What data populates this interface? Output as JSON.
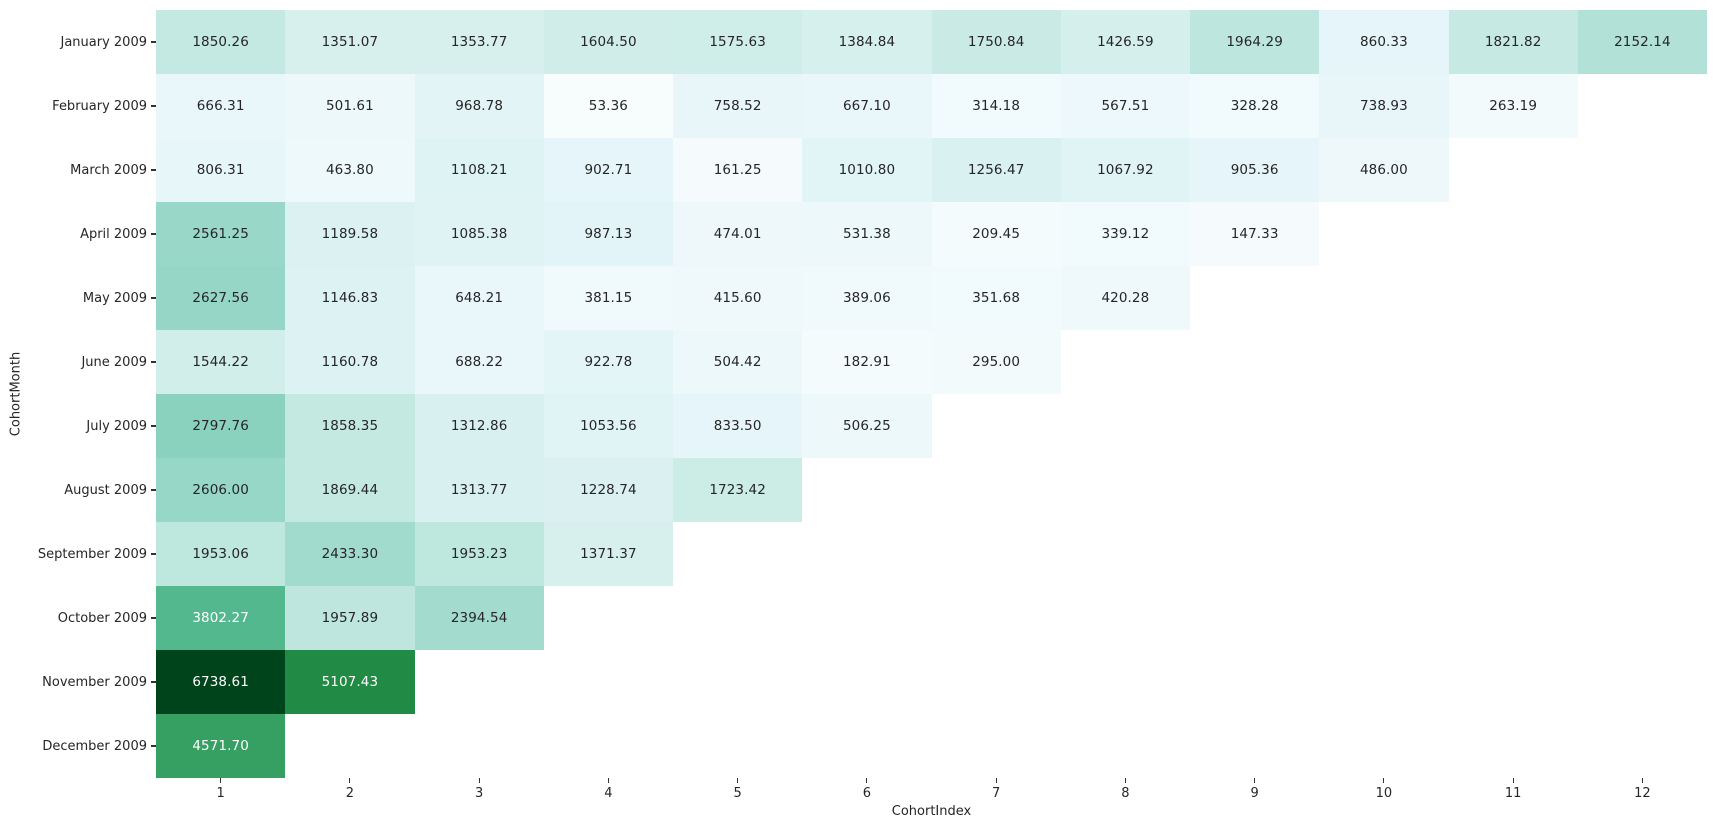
{
  "chart_data": {
    "type": "heatmap",
    "title": "",
    "xlabel": "CohortIndex",
    "ylabel": "CohortMonth",
    "x_ticks": [
      "1",
      "2",
      "3",
      "4",
      "5",
      "6",
      "7",
      "8",
      "9",
      "10",
      "11",
      "12"
    ],
    "y_ticks": [
      "January 2009",
      "February 2009",
      "March 2009",
      "April 2009",
      "May 2009",
      "June 2009",
      "July 2009",
      "August 2009",
      "September 2009",
      "October 2009",
      "November 2009",
      "December 2009"
    ],
    "values": [
      [
        1850.26,
        1351.07,
        1353.77,
        1604.5,
        1575.63,
        1384.84,
        1750.84,
        1426.59,
        1964.29,
        860.33,
        1821.82,
        2152.14
      ],
      [
        666.31,
        501.61,
        968.78,
        53.36,
        758.52,
        667.1,
        314.18,
        567.51,
        328.28,
        738.93,
        263.19
      ],
      [
        806.31,
        463.8,
        1108.21,
        902.71,
        161.25,
        1010.8,
        1256.47,
        1067.92,
        905.36,
        486.0
      ],
      [
        2561.25,
        1189.58,
        1085.38,
        987.13,
        474.01,
        531.38,
        209.45,
        339.12,
        147.33
      ],
      [
        2627.56,
        1146.83,
        648.21,
        381.15,
        415.6,
        389.06,
        351.68,
        420.28
      ],
      [
        1544.22,
        1160.78,
        688.22,
        922.78,
        504.42,
        182.91,
        295.0
      ],
      [
        2797.76,
        1858.35,
        1312.86,
        1053.56,
        833.5,
        506.25
      ],
      [
        2606.0,
        1869.44,
        1313.77,
        1228.74,
        1723.42
      ],
      [
        1953.06,
        2433.3,
        1953.23,
        1371.37
      ],
      [
        3802.27,
        1957.89,
        2394.54
      ],
      [
        6738.61,
        5107.43
      ],
      [
        4571.7
      ]
    ],
    "num_columns": 12,
    "value_decimals": 2,
    "vmin": 53.36,
    "vmax": 6738.61,
    "colormap": {
      "name": "BuGn",
      "anchors": [
        "#f7fcfd",
        "#e5f5f9",
        "#ccece6",
        "#99d8c9",
        "#66c2a4",
        "#41ae76",
        "#238b45",
        "#006d2c",
        "#00441b"
      ]
    },
    "annotation_text_dark": "#262626",
    "annotation_text_light": "#ffffff",
    "background": "#ffffff",
    "legend": "none",
    "grid": "off"
  }
}
